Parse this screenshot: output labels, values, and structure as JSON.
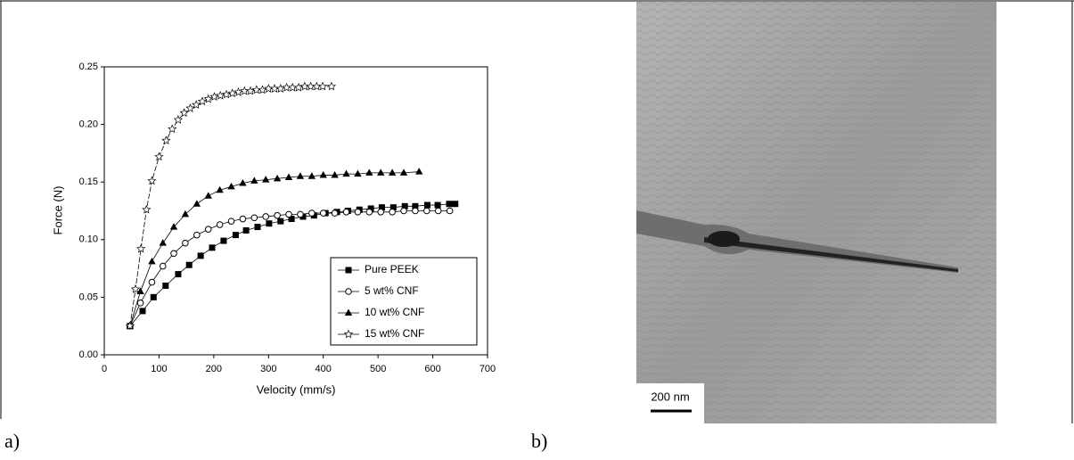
{
  "chart_data": {
    "type": "scatter",
    "xlabel": "Velocity (mm/s)",
    "ylabel": "Force (N)",
    "xlim": [
      0,
      700
    ],
    "xticks": [
      0,
      100,
      200,
      300,
      400,
      500,
      600,
      700
    ],
    "ylim": [
      0,
      0.25
    ],
    "yticks": [
      {
        "value": 0,
        "label": "0.00"
      },
      {
        "value": 0.05,
        "label": "0.05"
      },
      {
        "value": 0.1,
        "label": "0.10"
      },
      {
        "value": 0.15,
        "label": "0.15"
      },
      {
        "value": 0.2,
        "label": "0.20"
      },
      {
        "value": 0.25,
        "label": "0.25"
      }
    ],
    "legend": "lower right",
    "series": [
      {
        "name": "Pure PEEK",
        "color": "#000000",
        "marker": "square-filled",
        "x": [
          47,
          70,
          90,
          112,
          135,
          155,
          176,
          197,
          218,
          240,
          259,
          280,
          301,
          322,
          342,
          363,
          383,
          404,
          425,
          445,
          466,
          487,
          507,
          528,
          549,
          568,
          590,
          609,
          630,
          641
        ],
        "values": [
          0.025,
          0.038,
          0.05,
          0.06,
          0.07,
          0.078,
          0.086,
          0.093,
          0.099,
          0.104,
          0.108,
          0.111,
          0.114,
          0.116,
          0.118,
          0.12,
          0.121,
          0.123,
          0.124,
          0.125,
          0.126,
          0.127,
          0.128,
          0.128,
          0.129,
          0.129,
          0.13,
          0.13,
          0.131,
          0.131
        ]
      },
      {
        "name": "5 wt% CNF",
        "color": "#000000",
        "marker": "circle-open",
        "x": [
          47,
          66,
          87,
          107,
          127,
          148,
          169,
          190,
          211,
          232,
          253,
          274,
          295,
          316,
          337,
          358,
          379,
          400,
          421,
          442,
          463,
          484,
          505,
          526,
          547,
          568,
          589,
          610,
          631
        ],
        "values": [
          0.025,
          0.045,
          0.063,
          0.077,
          0.088,
          0.097,
          0.104,
          0.109,
          0.113,
          0.116,
          0.118,
          0.119,
          0.12,
          0.121,
          0.122,
          0.122,
          0.123,
          0.123,
          0.123,
          0.124,
          0.124,
          0.124,
          0.124,
          0.124,
          0.125,
          0.125,
          0.125,
          0.125,
          0.125
        ]
      },
      {
        "name": "10 wt% CNF",
        "color": "#000000",
        "marker": "triangle-filled",
        "x": [
          47,
          66,
          87,
          107,
          127,
          148,
          169,
          190,
          211,
          232,
          253,
          274,
          295,
          316,
          337,
          358,
          379,
          400,
          421,
          442,
          463,
          484,
          505,
          526,
          547,
          575
        ],
        "values": [
          0.025,
          0.055,
          0.081,
          0.097,
          0.111,
          0.122,
          0.131,
          0.138,
          0.143,
          0.146,
          0.149,
          0.151,
          0.152,
          0.153,
          0.154,
          0.155,
          0.155,
          0.156,
          0.156,
          0.157,
          0.157,
          0.158,
          0.158,
          0.158,
          0.158,
          0.159
        ]
      },
      {
        "name": "15 wt% CNF",
        "color": "#000000",
        "marker": "star-open",
        "x": [
          47,
          57,
          67,
          77,
          87,
          100,
          113,
          124,
          135,
          146,
          157,
          168,
          179,
          190,
          201,
          212,
          223,
          234,
          245,
          256,
          267,
          278,
          289,
          300,
          311,
          322,
          333,
          344,
          355,
          366,
          377,
          388,
          399,
          415
        ],
        "values": [
          0.025,
          0.057,
          0.092,
          0.126,
          0.151,
          0.172,
          0.186,
          0.196,
          0.204,
          0.21,
          0.214,
          0.217,
          0.22,
          0.222,
          0.224,
          0.225,
          0.226,
          0.227,
          0.228,
          0.229,
          0.229,
          0.23,
          0.23,
          0.231,
          0.231,
          0.231,
          0.232,
          0.232,
          0.232,
          0.233,
          0.233,
          0.233,
          0.233,
          0.233
        ]
      }
    ]
  },
  "panels": {
    "a_label": "a)",
    "b_label": "b)"
  },
  "image": {
    "scale_bar": "200 nm"
  }
}
